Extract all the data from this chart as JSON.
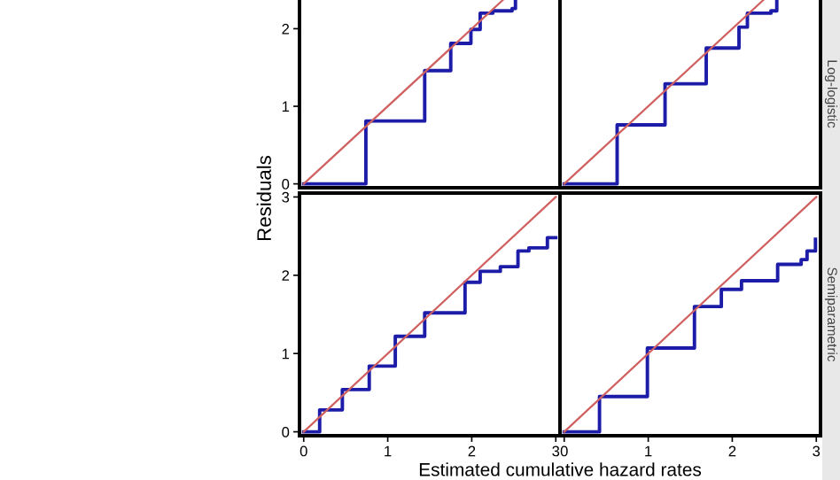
{
  "chart_data": [
    {
      "type": "step",
      "ylabel": "Residuals",
      "xlim": [
        -0.05,
        3.05
      ],
      "ylim": [
        -0.05,
        2.37
      ],
      "yticks": [
        0,
        1,
        2
      ],
      "tick_labels": "y",
      "series": [
        {
          "color": "#1c1ca8",
          "x": [
            0,
            0.74,
            1.44,
            1.75,
            1.99,
            2.1,
            2.25,
            2.48,
            2.52
          ],
          "values": [
            0,
            0.81,
            1.46,
            1.81,
            1.99,
            2.2,
            2.23,
            2.26,
            2.37
          ]
        },
        {
          "type": "line",
          "color": "#d06060",
          "x": [
            0,
            2.37
          ],
          "values": [
            0,
            2.37
          ]
        }
      ]
    },
    {
      "type": "step",
      "annotations": [
        "Log-logistic"
      ],
      "xlim": [
        -0.05,
        3.05
      ],
      "ylim": [
        -0.05,
        2.37
      ],
      "tick_labels": false,
      "series": [
        {
          "color": "#1c1ca8",
          "x": [
            0,
            0.63,
            1.2,
            1.69,
            2.08,
            2.18,
            2.46,
            2.53
          ],
          "values": [
            0,
            0.76,
            1.29,
            1.75,
            2.02,
            2.2,
            2.23,
            2.37
          ]
        },
        {
          "type": "line",
          "color": "#d06060",
          "x": [
            0,
            2.37
          ],
          "values": [
            0,
            2.37
          ]
        }
      ]
    },
    {
      "type": "step",
      "xlim": [
        -0.05,
        3.05
      ],
      "ylim": [
        -0.05,
        3.05
      ],
      "xticks": [
        0,
        1,
        2,
        3
      ],
      "yticks": [
        0,
        1,
        2,
        3
      ],
      "series": [
        {
          "color": "#1c1ca8",
          "x": [
            0,
            0.19,
            0.46,
            0.78,
            1.09,
            1.44,
            1.92,
            2.1,
            2.34,
            2.55,
            2.68,
            2.83,
            2.9,
            3.0
          ],
          "values": [
            0,
            0.28,
            0.54,
            0.84,
            1.22,
            1.52,
            1.91,
            2.05,
            2.11,
            2.31,
            2.35,
            2.35,
            2.48,
            2.48
          ]
        },
        {
          "type": "line",
          "color": "#d06060",
          "x": [
            0,
            3
          ],
          "values": [
            0,
            3
          ]
        }
      ]
    },
    {
      "type": "step",
      "xlabel": "Estimated cumulative hazard rates",
      "annotations": [
        "Semiparametric"
      ],
      "xlim": [
        -0.05,
        3.05
      ],
      "ylim": [
        -0.05,
        3.05
      ],
      "xticks": [
        0,
        1,
        2,
        3
      ],
      "tick_labels": "x",
      "series": [
        {
          "color": "#1c1ca8",
          "x": [
            0,
            0.42,
            0.99,
            1.55,
            1.87,
            2.11,
            2.54,
            2.82,
            2.89,
            2.99
          ],
          "values": [
            0,
            0.45,
            1.07,
            1.6,
            1.82,
            1.93,
            2.14,
            2.2,
            2.31,
            2.46
          ]
        },
        {
          "type": "line",
          "color": "#d06060",
          "x": [
            0,
            3
          ],
          "values": [
            0,
            3
          ]
        }
      ]
    }
  ]
}
